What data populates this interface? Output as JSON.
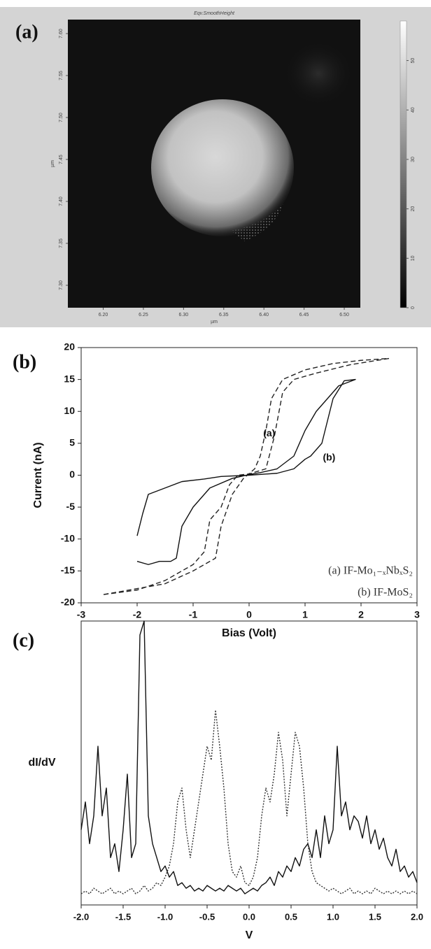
{
  "chart_data": [
    {
      "type": "image",
      "panel_label": "(a)",
      "title": "Eqv.SmoothHeight",
      "xlabel": "µm",
      "ylabel": "µm",
      "xlim": [
        6.156,
        6.52
      ],
      "ylim": [
        7.2733,
        7.6167
      ],
      "xticks": [
        {
          "value": 6.2,
          "label": "6.20"
        },
        6.25,
        {
          "value": 6.3,
          "label": "6.30"
        },
        6.35,
        {
          "value": 6.4,
          "label": "6.40"
        },
        6.45,
        {
          "value": 6.5,
          "label": "6.50"
        }
      ],
      "yticks": [
        {
          "value": 7.3,
          "label": "7.30"
        },
        7.35,
        {
          "value": 7.4,
          "label": "7.40"
        },
        7.45,
        {
          "value": 7.5,
          "label": "7.50"
        },
        7.55,
        {
          "value": 7.6,
          "label": "7.60"
        }
      ],
      "clim": [
        0,
        58
      ],
      "cticks": [
        0,
        10,
        20,
        30,
        40,
        50
      ]
    },
    {
      "type": "line",
      "panel_label": "(b)",
      "xlabel": "Bias (Volt)",
      "ylabel": "Current (nA)",
      "xlim": [
        -3,
        3
      ],
      "ylim": [
        -20,
        20
      ],
      "xticks": [
        -3,
        -2,
        -1,
        0,
        1,
        2,
        3
      ],
      "yticks": [
        -20,
        -15,
        -10,
        -5,
        0,
        5,
        10,
        15,
        20
      ],
      "legend": "lower right",
      "annotations": [
        {
          "text": "(a)",
          "x": 0.36,
          "y": 6.5
        },
        {
          "text": "(b)",
          "x": 1.43,
          "y": 2.7
        }
      ],
      "series": [
        {
          "name": "(a) IF-Mo₁₋ₓNbₓS₂",
          "color": "#222222",
          "dash": "dashed",
          "x": [
            -2.6,
            -2,
            -1.5,
            -1,
            -0.8,
            -0.7,
            -0.5,
            -0.35,
            -0.2,
            0,
            0.3,
            0.45,
            0.6,
            0.8,
            1.2,
            1.8,
            2.5,
            2,
            1.5,
            1,
            0.6,
            0.4,
            0.3,
            0.2,
            0.1,
            -0.1,
            -0.3,
            -0.5,
            -0.6,
            -1,
            -1.5,
            -2.6
          ],
          "values": [
            -18.7,
            -18,
            -16.5,
            -14,
            -12,
            -7,
            -5,
            -1.5,
            0,
            0.2,
            1,
            6,
            13,
            15,
            16,
            17.3,
            18.3,
            18,
            17.5,
            16.5,
            15,
            12,
            7,
            3,
            1,
            -0.5,
            -3,
            -8,
            -13,
            -15,
            -17,
            -18.7
          ]
        },
        {
          "name": "(b) IF-MoS₂",
          "color": "#111111",
          "dash": "solid",
          "x": [
            -2,
            -1.9,
            -1.8,
            -1.5,
            -1.2,
            -0.8,
            -0.5,
            0,
            0.5,
            0.8,
            1,
            1.1,
            1.3,
            1.5,
            1.7,
            1.9,
            1.6,
            1.4,
            1.2,
            1,
            0.8,
            0.5,
            0.2,
            0,
            -0.3,
            -0.7,
            -1,
            -1.2,
            -1.3,
            -1.4,
            -1.6,
            -1.8,
            -2
          ],
          "values": [
            -9.5,
            -6,
            -3,
            -2,
            -1,
            -0.6,
            -0.2,
            0,
            0.3,
            1,
            2.5,
            3,
            5,
            12,
            14.8,
            15,
            14,
            12,
            10,
            7,
            3,
            1,
            0.4,
            0.1,
            -0.5,
            -2,
            -5,
            -8,
            -13,
            -13.5,
            -13.5,
            -14,
            -13.5
          ]
        }
      ]
    },
    {
      "type": "line",
      "panel_label": "(c)",
      "xlabel": "V",
      "ylabel": "dI/dV",
      "xlim": [
        -2,
        2
      ],
      "ylim": [
        -2,
        100
      ],
      "xticks": [
        {
          "value": -2,
          "label": "-2.0"
        },
        -1.5,
        {
          "value": -1,
          "label": "-1.0"
        },
        -0.5,
        {
          "value": 0,
          "label": "0.0"
        },
        0.5,
        {
          "value": 1,
          "label": "1.0"
        },
        1.5,
        {
          "value": 2,
          "label": "2.0"
        }
      ],
      "x": [
        -2,
        -1.95,
        -1.9,
        -1.85,
        -1.8,
        -1.75,
        -1.7,
        -1.65,
        -1.6,
        -1.55,
        -1.5,
        -1.45,
        -1.4,
        -1.35,
        -1.3,
        -1.25,
        -1.2,
        -1.15,
        -1.1,
        -1.05,
        -1,
        -0.95,
        -0.9,
        -0.85,
        -0.8,
        -0.75,
        -0.7,
        -0.65,
        -0.6,
        -0.55,
        -0.5,
        -0.45,
        -0.4,
        -0.35,
        -0.3,
        -0.25,
        -0.2,
        -0.15,
        -0.1,
        -0.05,
        0,
        0.05,
        0.1,
        0.15,
        0.2,
        0.25,
        0.3,
        0.35,
        0.4,
        0.45,
        0.5,
        0.55,
        0.6,
        0.65,
        0.7,
        0.75,
        0.8,
        0.85,
        0.9,
        0.95,
        1,
        1.05,
        1.1,
        1.15,
        1.2,
        1.25,
        1.3,
        1.35,
        1.4,
        1.45,
        1.5,
        1.55,
        1.6,
        1.65,
        1.7,
        1.75,
        1.8,
        1.85,
        1.9,
        1.95,
        2
      ],
      "series": [
        {
          "color": "#111111",
          "dash": "solid",
          "values": [
            25,
            35,
            20,
            30,
            55,
            30,
            40,
            15,
            20,
            10,
            25,
            45,
            15,
            20,
            95,
            100,
            30,
            20,
            15,
            10,
            12,
            8,
            10,
            5,
            6,
            4,
            5,
            3,
            4,
            3,
            5,
            4,
            3,
            4,
            3,
            5,
            4,
            3,
            4,
            2,
            3,
            4,
            3,
            5,
            6,
            8,
            5,
            10,
            8,
            12,
            10,
            15,
            12,
            18,
            20,
            15,
            25,
            15,
            30,
            20,
            25,
            55,
            30,
            35,
            25,
            30,
            28,
            22,
            30,
            20,
            25,
            18,
            22,
            15,
            12,
            18,
            10,
            12,
            8,
            10,
            6
          ]
        },
        {
          "color": "#333333",
          "dash": "dotted",
          "values": [
            2,
            3,
            2,
            4,
            3,
            2,
            3,
            4,
            2,
            3,
            2,
            3,
            4,
            2,
            3,
            5,
            3,
            4,
            6,
            5,
            8,
            12,
            20,
            35,
            40,
            25,
            15,
            25,
            35,
            45,
            55,
            50,
            68,
            55,
            40,
            20,
            10,
            8,
            12,
            6,
            5,
            8,
            15,
            30,
            40,
            35,
            45,
            60,
            50,
            30,
            45,
            60,
            55,
            40,
            20,
            10,
            6,
            5,
            4,
            3,
            4,
            3,
            2,
            3,
            4,
            2,
            3,
            2,
            3,
            2,
            4,
            3,
            2,
            3,
            2,
            3,
            2,
            3,
            2,
            3,
            2
          ]
        }
      ]
    }
  ]
}
